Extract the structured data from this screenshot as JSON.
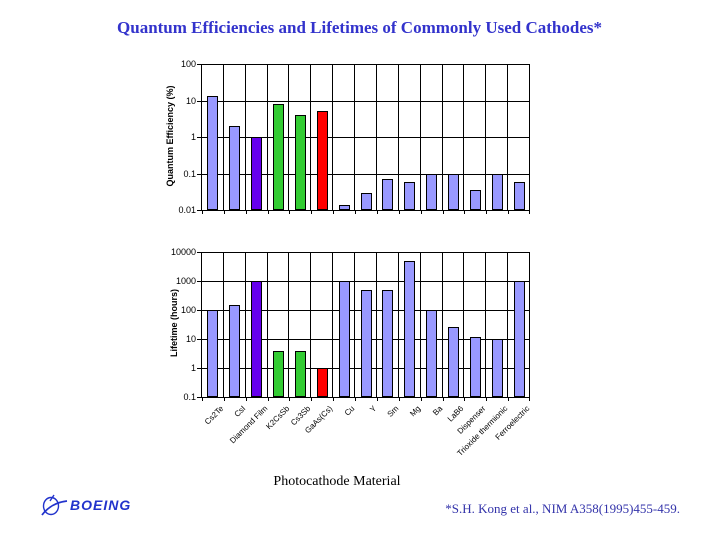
{
  "title": "Quantum Efficiencies and Lifetimes of Commonly Used Cathodes*",
  "xlabel": "Photocathode Material",
  "footer": {
    "attribution": "*S.H. Kong et al., NIM A358(1995)455-459."
  },
  "logo": {
    "text": "BOEING"
  },
  "palette": {
    "title_blue": "#3333CC",
    "attribution_blue": "#3333AA",
    "logo_blue": "#2233CC",
    "bar_default": "#9999FF",
    "bar_violet": "#6600EE",
    "bar_green": "#33CC33",
    "bar_red": "#FF0000"
  },
  "chart_data": [
    {
      "type": "bar",
      "ylabel": "Quantum Efficiency (%)",
      "scale": "log",
      "ylim": [
        0.01,
        100
      ],
      "yticks": [
        100,
        10,
        1,
        0.1,
        0.01
      ],
      "grid": "both",
      "legend": "none",
      "categories": [
        "Cs2Te",
        "CsI",
        "Diamond Film",
        "K2CsSb",
        "Cs3Sb",
        "GaAs(Cs)",
        "Cu",
        "Y",
        "Sm",
        "Mg",
        "Ba",
        "LaB6",
        "Dispenser",
        "Trioxide thermionic",
        "Ferroelectric"
      ],
      "values": [
        13,
        2,
        1,
        8,
        4,
        5,
        0.014,
        0.03,
        0.07,
        0.06,
        0.1,
        0.1,
        0.035,
        0.1,
        0.06
      ],
      "bar_colors": [
        "#9999FF",
        "#9999FF",
        "#6600EE",
        "#33CC33",
        "#33CC33",
        "#FF0000",
        "#9999FF",
        "#9999FF",
        "#9999FF",
        "#9999FF",
        "#9999FF",
        "#9999FF",
        "#9999FF",
        "#9999FF",
        "#9999FF"
      ],
      "show_category_labels": false
    },
    {
      "type": "bar",
      "ylabel": "Lifetime (hours)",
      "scale": "log",
      "ylim": [
        0.1,
        10000
      ],
      "yticks": [
        10000,
        1000,
        100,
        10,
        1,
        0.1
      ],
      "grid": "both",
      "legend": "none",
      "categories": [
        "Cs2Te",
        "CsI",
        "Diamond Film",
        "K2CsSb",
        "Cs3Sb",
        "GaAs(Cs)",
        "Cu",
        "Y",
        "Sm",
        "Mg",
        "Ba",
        "LaB6",
        "Dispenser",
        "Trioxide thermionic",
        "Ferroelectric"
      ],
      "values": [
        100,
        150,
        1000,
        4,
        4,
        1,
        1000,
        500,
        500,
        5000,
        100,
        25,
        12,
        10,
        1000
      ],
      "bar_colors": [
        "#9999FF",
        "#9999FF",
        "#6600EE",
        "#33CC33",
        "#33CC33",
        "#FF0000",
        "#9999FF",
        "#9999FF",
        "#9999FF",
        "#9999FF",
        "#9999FF",
        "#9999FF",
        "#9999FF",
        "#9999FF",
        "#9999FF"
      ],
      "show_category_labels": true
    }
  ]
}
